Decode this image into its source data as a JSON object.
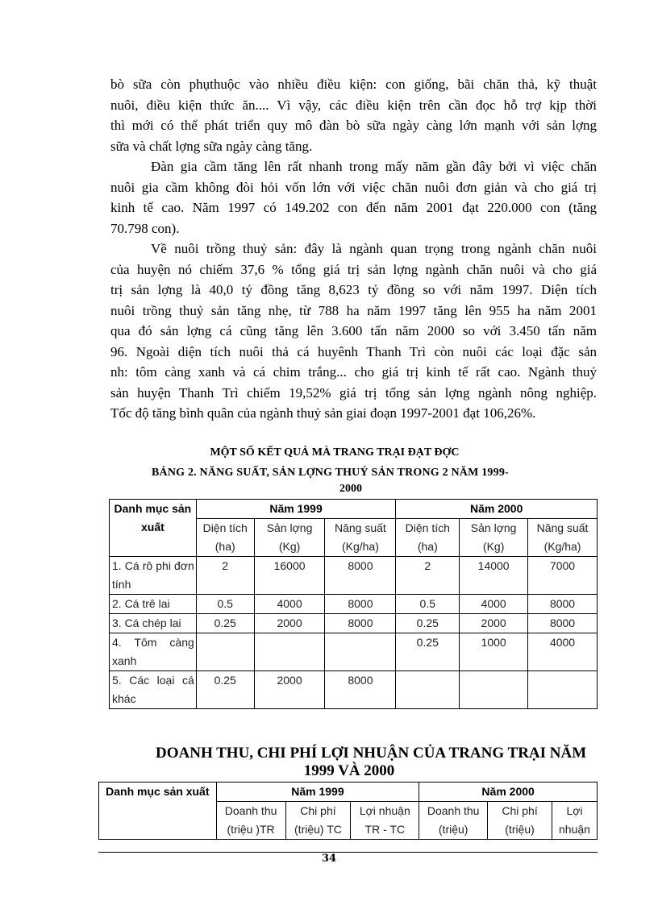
{
  "paragraphs": [
    {
      "indent": false,
      "lines": [
        "bò sữa còn phụthuộc vào nhiều điều kiện: con giống, bãi chăn thả, kỹ thuật",
        "nuôi, điều kiện thức ăn.... Vì vậy, các điều kiện trên cần đọc  hỗ trợ kịp thời",
        "thì mới có thể phát triển quy mô đàn bò sữa ngày càng lớn mạnh với sản lợng",
        "sữa và chất lợng  sữa ngày càng tăng."
      ]
    },
    {
      "indent": true,
      "lines": [
        "Đàn gia cầm tăng lên rất nhanh trong mấy năm gần đây bởi vì việc chăn",
        "nuôi gia cầm không đòi hỏi vốn lớn với việc chăn nuôi đơn giản và cho giá trị",
        "kinh tế cao. Năm 1997 có 149.202 con đến năm 2001 đạt 220.000 con (tăng",
        "70.798 con)."
      ]
    },
    {
      "indent": true,
      "lines": [
        "Về nuôi trồng thuỷ sản: đây là ngành quan trọng trong ngành chăn nuôi",
        "của huyện nó chiếm 37,6 % tổng giá trị sản lợng  ngành chăn nuôi và cho giá",
        "trị sản lợng  là 40,0 tỷ đồng tăng 8,623 tỷ đồng so với năm 1997. Diện tích",
        "nuôi trồng thuỷ sản tăng nhẹ, từ 788 ha năm 1997 tăng lên 955 ha năm 2001",
        "qua đó sản lợng  cá cũng tăng lên 3.600 tấn năm 2000 so với 3.450 tấn năm",
        "96. Ngoài diện tích nuôi thả cá huyênh Thanh Trì còn nuôi các loại đặc sản",
        "nh:  tôm càng xanh và cá chim trắng... cho giá trị kinh tế rất cao. Ngành thuỷ",
        "sản huyện Thanh Trì chiếm 19,52% giá trị tổng sản lợng  ngành nông nghiệp.",
        "Tốc độ tăng bình quân của ngành thuỷ sản giai đoạn 1997-2001 đạt 106,26%."
      ]
    }
  ],
  "section_title": "MỘT SỐ KẾT QUẢ MÀ TRANG TRẠI ĐẠT ĐỢC",
  "table1": {
    "title_line1": "BẢNG 2. NĂNG  SUẤT, SẢN LỢNG   THUỶ SẢN TRONG 2 NĂM 1999-",
    "title_line2": "2000",
    "category_header": "Danh mục sản xuất",
    "year1": "Năm 1999",
    "year2": "Năm 2000",
    "subheaders": [
      "Diện tích (ha)",
      "Sản lợng (Kg)",
      "Năng suất (Kg/ha)",
      "Diện tích (ha)",
      "Sản lợng  (Kg)",
      "Năng suất (Kg/ha)"
    ],
    "rows": [
      {
        "name": "1. Cá rô phi đơn tính",
        "values": [
          "2",
          "16000",
          "8000",
          "2",
          "14000",
          "7000"
        ]
      },
      {
        "name": "2. Cá trê lai",
        "values": [
          "0.5",
          "4000",
          "8000",
          "0.5",
          "4000",
          "8000"
        ]
      },
      {
        "name": "3. Cá chép lai",
        "values": [
          "0.25",
          "2000",
          "8000",
          "0.25",
          "2000",
          "8000"
        ]
      },
      {
        "name": "4. Tôm càng xanh",
        "values": [
          "",
          "",
          "",
          "0.25",
          "1000",
          "4000"
        ]
      },
      {
        "name": "5. Các loại cá khác",
        "values": [
          "0.25",
          "2000",
          "8000",
          "",
          "",
          ""
        ]
      }
    ]
  },
  "table2": {
    "title_line1": "DOANH THU, CHI PHÍ LỢI NHUẬN CỦA TRANG TRẠI NĂM",
    "title_line2": "1999 VÀ 2000",
    "category_header": "Danh mục sản xuất",
    "year1": "Năm 1999",
    "year2": "Năm 2000",
    "subheaders": [
      "Doanh thu (triệu )TR",
      "Chi phí (triệu) TC",
      "Lợi nhuận TR - TC",
      "Doanh thu (triệu)",
      "Chi phí (triệu)",
      "Lợi nhuận"
    ]
  },
  "page_number": "34"
}
